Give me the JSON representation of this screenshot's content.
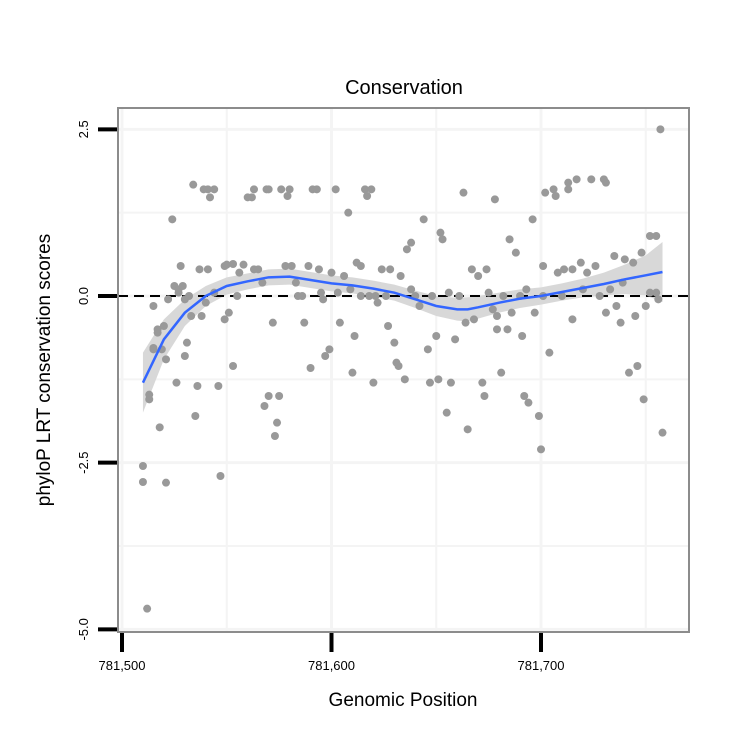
{
  "chart_data": {
    "type": "scatter",
    "title": "Conservation",
    "xlabel": "Genomic Position",
    "ylabel": "phyloP LRT conservation scores",
    "xlim": [
      781498,
      781770
    ],
    "ylim": [
      -5.0,
      3.0
    ],
    "x_ticks": [
      781500,
      781600,
      781700
    ],
    "x_tick_labels": [
      "781,500",
      "781,600",
      "781,700"
    ],
    "y_ticks": [
      2.5,
      0.0,
      -2.5,
      -5.0
    ],
    "y_tick_labels": [
      "2.5",
      "0.0",
      "-2.5",
      "-5.0"
    ],
    "x_minor": [
      781550,
      781650,
      781750
    ],
    "y_minor": [
      1.25,
      -1.25,
      -3.75
    ],
    "grid": true,
    "reference_line": 0.0,
    "colors": {
      "points": "#999999",
      "smooth": "#3366ff",
      "ribbon": "#d6d6d6",
      "border": "#8c8c8c",
      "grid": "#f4f4f4"
    },
    "points": [
      [
        781510,
        -2.55
      ],
      [
        781510,
        -2.79
      ],
      [
        781512,
        -4.69
      ],
      [
        781513,
        -1.55
      ],
      [
        781513,
        -1.48
      ],
      [
        781515,
        -0.8
      ],
      [
        781515,
        -0.78
      ],
      [
        781515,
        -0.15
      ],
      [
        781517,
        -0.55
      ],
      [
        781517,
        -0.5
      ],
      [
        781518,
        -1.97
      ],
      [
        781519,
        -0.8
      ],
      [
        781520,
        -0.45
      ],
      [
        781521,
        -0.95
      ],
      [
        781521,
        -2.8
      ],
      [
        781522,
        -0.05
      ],
      [
        781524,
        1.15
      ],
      [
        781525,
        0.15
      ],
      [
        781526,
        -1.3
      ],
      [
        781527,
        0.05
      ],
      [
        781527,
        0.1
      ],
      [
        781528,
        0.45
      ],
      [
        781529,
        0.15
      ],
      [
        781530,
        -0.05
      ],
      [
        781530,
        -0.9
      ],
      [
        781531,
        -0.7
      ],
      [
        781532,
        0.0
      ],
      [
        781533,
        -0.3
      ],
      [
        781534,
        1.67
      ],
      [
        781535,
        -1.8
      ],
      [
        781536,
        -1.35
      ],
      [
        781537,
        0.4
      ],
      [
        781538,
        -0.3
      ],
      [
        781539,
        1.6
      ],
      [
        781540,
        -0.1
      ],
      [
        781541,
        0.4
      ],
      [
        781541,
        1.6
      ],
      [
        781542,
        1.48
      ],
      [
        781544,
        1.6
      ],
      [
        781544,
        0.05
      ],
      [
        781546,
        -1.35
      ],
      [
        781547,
        -2.7
      ],
      [
        781549,
        0.45
      ],
      [
        781549,
        -0.35
      ],
      [
        781550,
        0.47
      ],
      [
        781551,
        -0.25
      ],
      [
        781553,
        0.48
      ],
      [
        781553,
        -1.05
      ],
      [
        781555,
        0.0
      ],
      [
        781556,
        0.35
      ],
      [
        781558,
        0.47
      ],
      [
        781560,
        1.48
      ],
      [
        781562,
        1.48
      ],
      [
        781563,
        0.4
      ],
      [
        781563,
        1.6
      ],
      [
        781565,
        0.4
      ],
      [
        781567,
        0.2
      ],
      [
        781568,
        -1.65
      ],
      [
        781569,
        1.6
      ],
      [
        781570,
        1.6
      ],
      [
        781570,
        -1.5
      ],
      [
        781572,
        -0.4
      ],
      [
        781573,
        -2.1
      ],
      [
        781574,
        -1.9
      ],
      [
        781575,
        -1.5
      ],
      [
        781576,
        1.6
      ],
      [
        781578,
        0.45
      ],
      [
        781579,
        1.5
      ],
      [
        781580,
        1.6
      ],
      [
        781581,
        0.45
      ],
      [
        781583,
        0.2
      ],
      [
        781584,
        0.0
      ],
      [
        781586,
        0.0
      ],
      [
        781587,
        -0.4
      ],
      [
        781589,
        0.45
      ],
      [
        781590,
        -1.08
      ],
      [
        781591,
        1.6
      ],
      [
        781593,
        1.6
      ],
      [
        781594,
        0.4
      ],
      [
        781595,
        0.05
      ],
      [
        781596,
        -0.05
      ],
      [
        781597,
        -0.9
      ],
      [
        781599,
        -0.8
      ],
      [
        781600,
        0.35
      ],
      [
        781602,
        1.6
      ],
      [
        781603,
        0.05
      ],
      [
        781604,
        -0.4
      ],
      [
        781606,
        0.3
      ],
      [
        781608,
        1.25
      ],
      [
        781609,
        0.1
      ],
      [
        781610,
        -1.15
      ],
      [
        781611,
        -0.6
      ],
      [
        781612,
        0.5
      ],
      [
        781614,
        0.45
      ],
      [
        781614,
        0.0
      ],
      [
        781616,
        1.6
      ],
      [
        781617,
        1.5
      ],
      [
        781618,
        0.0
      ],
      [
        781619,
        1.6
      ],
      [
        781620,
        -1.3
      ],
      [
        781621,
        0.0
      ],
      [
        781622,
        -0.1
      ],
      [
        781624,
        0.4
      ],
      [
        781626,
        0.0
      ],
      [
        781627,
        -0.45
      ],
      [
        781628,
        0.4
      ],
      [
        781630,
        -0.7
      ],
      [
        781631,
        -1.0
      ],
      [
        781632,
        -1.05
      ],
      [
        781633,
        0.3
      ],
      [
        781635,
        -1.25
      ],
      [
        781636,
        0.7
      ],
      [
        781638,
        0.8
      ],
      [
        781638,
        0.1
      ],
      [
        781640,
        0.0
      ],
      [
        781642,
        -0.15
      ],
      [
        781644,
        1.15
      ],
      [
        781646,
        -0.8
      ],
      [
        781647,
        -1.3
      ],
      [
        781648,
        0.0
      ],
      [
        781650,
        -0.6
      ],
      [
        781651,
        -1.25
      ],
      [
        781652,
        0.95
      ],
      [
        781653,
        0.85
      ],
      [
        781655,
        -1.75
      ],
      [
        781656,
        0.05
      ],
      [
        781657,
        -1.3
      ],
      [
        781659,
        -0.65
      ],
      [
        781661,
        0.0
      ],
      [
        781663,
        1.55
      ],
      [
        781664,
        -0.4
      ],
      [
        781665,
        -2.0
      ],
      [
        781667,
        0.4
      ],
      [
        781668,
        -0.35
      ],
      [
        781670,
        0.3
      ],
      [
        781672,
        -1.3
      ],
      [
        781673,
        -1.5
      ],
      [
        781674,
        0.4
      ],
      [
        781675,
        0.05
      ],
      [
        781677,
        -0.2
      ],
      [
        781678,
        1.45
      ],
      [
        781679,
        -0.5
      ],
      [
        781679,
        -0.3
      ],
      [
        781681,
        -1.15
      ],
      [
        781682,
        0.0
      ],
      [
        781684,
        -0.5
      ],
      [
        781685,
        0.85
      ],
      [
        781686,
        -0.25
      ],
      [
        781688,
        0.65
      ],
      [
        781690,
        0.0
      ],
      [
        781691,
        -0.6
      ],
      [
        781692,
        -1.5
      ],
      [
        781693,
        0.1
      ],
      [
        781694,
        -1.6
      ],
      [
        781696,
        1.15
      ],
      [
        781697,
        -0.25
      ],
      [
        781699,
        -1.8
      ],
      [
        781700,
        -2.3
      ],
      [
        781701,
        0.45
      ],
      [
        781701,
        0.0
      ],
      [
        781702,
        1.55
      ],
      [
        781704,
        -0.85
      ],
      [
        781706,
        1.6
      ],
      [
        781707,
        1.5
      ],
      [
        781708,
        0.35
      ],
      [
        781710,
        0.0
      ],
      [
        781711,
        0.4
      ],
      [
        781713,
        1.7
      ],
      [
        781713,
        1.6
      ],
      [
        781715,
        0.4
      ],
      [
        781715,
        -0.35
      ],
      [
        781717,
        1.75
      ],
      [
        781719,
        0.5
      ],
      [
        781720,
        0.1
      ],
      [
        781722,
        0.35
      ],
      [
        781724,
        1.75
      ],
      [
        781726,
        0.45
      ],
      [
        781728,
        0.0
      ],
      [
        781730,
        1.75
      ],
      [
        781731,
        1.7
      ],
      [
        781731,
        -0.25
      ],
      [
        781733,
        0.1
      ],
      [
        781735,
        0.6
      ],
      [
        781736,
        -0.15
      ],
      [
        781738,
        -0.4
      ],
      [
        781739,
        0.2
      ],
      [
        781740,
        0.55
      ],
      [
        781742,
        -1.15
      ],
      [
        781744,
        0.5
      ],
      [
        781745,
        -0.3
      ],
      [
        781746,
        -1.05
      ],
      [
        781748,
        0.65
      ],
      [
        781749,
        -1.55
      ],
      [
        781750,
        -0.15
      ],
      [
        781752,
        0.9
      ],
      [
        781752,
        0.05
      ],
      [
        781755,
        0.9
      ],
      [
        781755,
        0.05
      ],
      [
        781756,
        -0.05
      ],
      [
        781757,
        2.5
      ],
      [
        781758,
        -2.05
      ]
    ],
    "smooth": {
      "x": [
        781510,
        781520,
        781530,
        781540,
        781550,
        781560,
        781570,
        781580,
        781590,
        781600,
        781610,
        781620,
        781630,
        781640,
        781650,
        781660,
        781665,
        781670,
        781680,
        781690,
        781700,
        781710,
        781720,
        781730,
        781740,
        781750,
        781758
      ],
      "y": [
        -1.3,
        -0.65,
        -0.25,
        0.0,
        0.15,
        0.22,
        0.28,
        0.29,
        0.24,
        0.19,
        0.16,
        0.11,
        0.05,
        -0.05,
        -0.15,
        -0.2,
        -0.2,
        -0.17,
        -0.1,
        -0.04,
        0.0,
        0.06,
        0.12,
        0.18,
        0.25,
        0.31,
        0.36
      ],
      "se": [
        0.45,
        0.3,
        0.2,
        0.15,
        0.13,
        0.12,
        0.12,
        0.12,
        0.12,
        0.12,
        0.12,
        0.12,
        0.12,
        0.13,
        0.15,
        0.17,
        0.18,
        0.17,
        0.15,
        0.14,
        0.13,
        0.13,
        0.14,
        0.17,
        0.22,
        0.3,
        0.45
      ]
    }
  }
}
